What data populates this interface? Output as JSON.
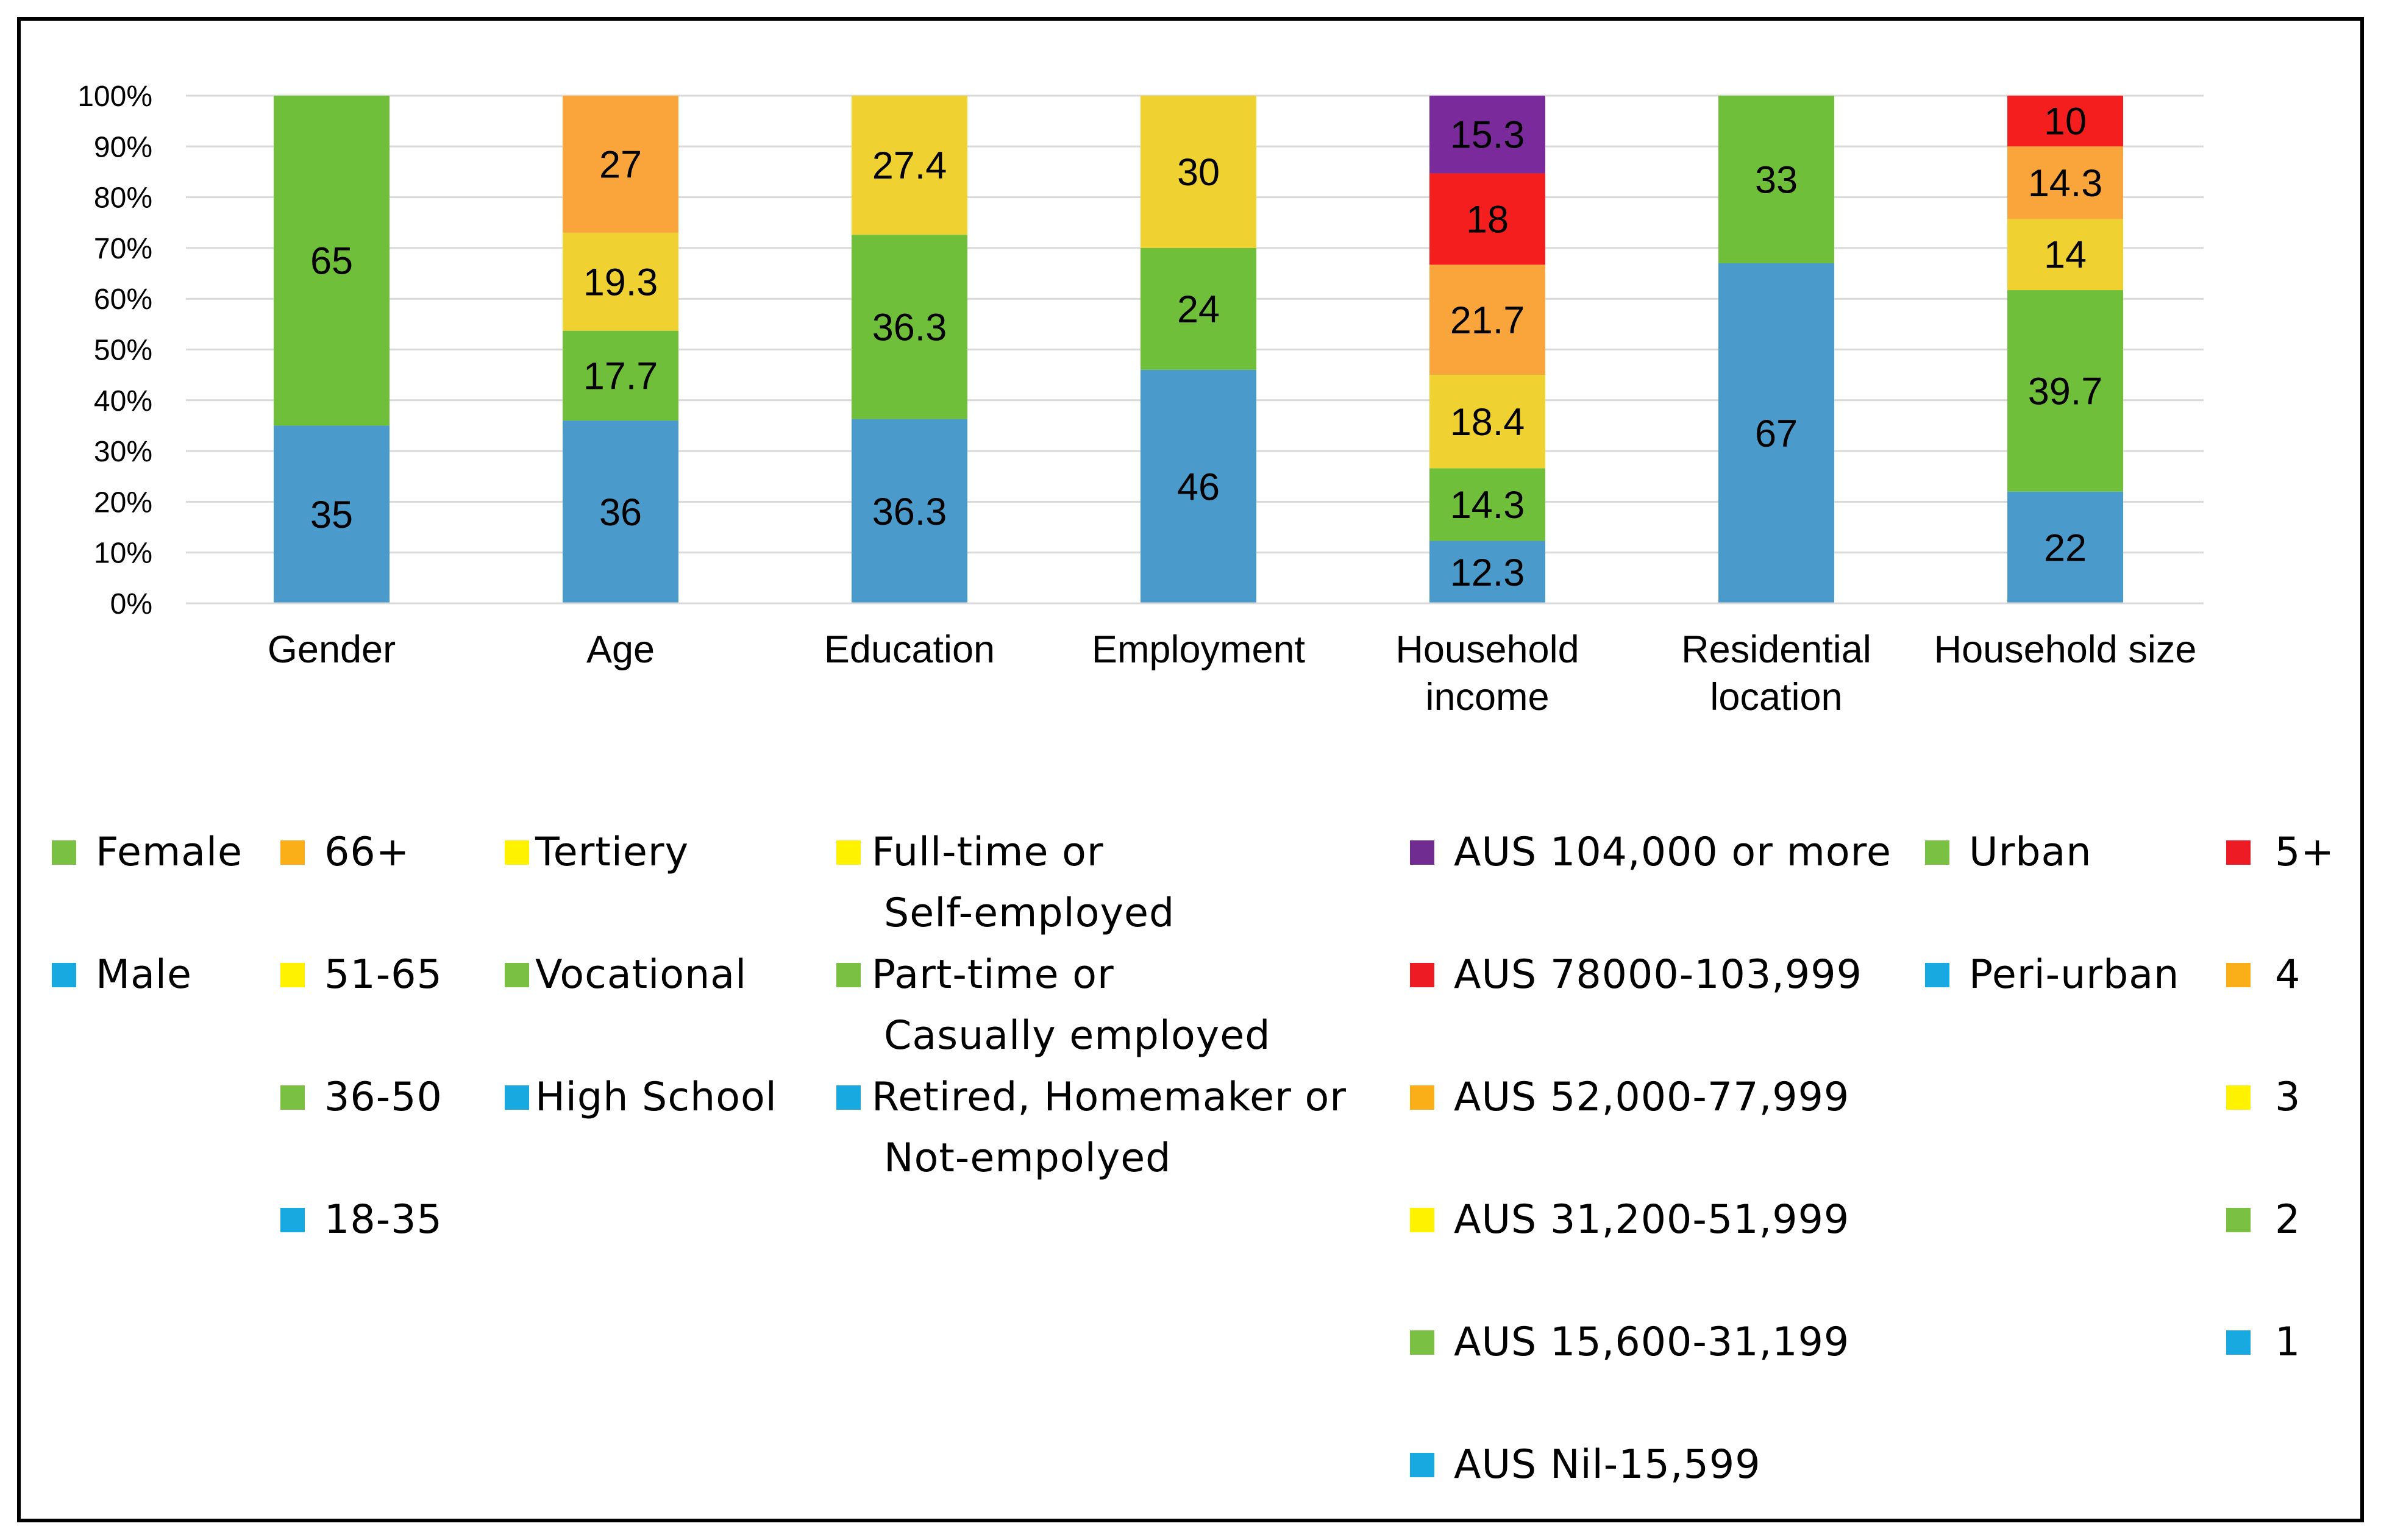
{
  "chart_data": {
    "type": "bar",
    "stacked": true,
    "percent_stacked": true,
    "categories": [
      "Gender",
      "Age",
      "Education",
      "Employment",
      "Household income",
      "Residential location",
      "Household size"
    ],
    "category_label_lines": [
      [
        "Gender"
      ],
      [
        "Age"
      ],
      [
        "Education"
      ],
      [
        "Employment"
      ],
      [
        "Household",
        "income"
      ],
      [
        "Residential",
        "location"
      ],
      [
        "Household size"
      ]
    ],
    "yaxis": {
      "ticks": [
        "0%",
        "10%",
        "20%",
        "30%",
        "40%",
        "50%",
        "60%",
        "70%",
        "80%",
        "90%",
        "100%"
      ],
      "ylim": [
        0,
        100
      ],
      "grid": true
    },
    "stacks": [
      {
        "category": "Gender",
        "segments": [
          {
            "name": "Male",
            "value": 35,
            "label": "35",
            "color": "#4A9ACB"
          },
          {
            "name": "Female",
            "value": 65,
            "label": "65",
            "color": "#70BF3A"
          }
        ]
      },
      {
        "category": "Age",
        "segments": [
          {
            "name": "18-35",
            "value": 36,
            "label": "36",
            "color": "#4A9ACB"
          },
          {
            "name": "36-50",
            "value": 17.7,
            "label": "17.7",
            "color": "#70BF3A"
          },
          {
            "name": "51-65",
            "value": 19.3,
            "label": "19.3",
            "color": "#F0D132"
          },
          {
            "name": "66+",
            "value": 27,
            "label": "27",
            "color": "#FAA53C"
          }
        ]
      },
      {
        "category": "Education",
        "segments": [
          {
            "name": "High School",
            "value": 36.3,
            "label": "36.3",
            "color": "#4A9ACB"
          },
          {
            "name": "Vocational",
            "value": 36.3,
            "label": "36.3",
            "color": "#70BF3A"
          },
          {
            "name": "Tertiery",
            "value": 27.4,
            "label": "27.4",
            "color": "#F0D132"
          }
        ]
      },
      {
        "category": "Employment",
        "segments": [
          {
            "name": "Retired, Homemaker or Not-empolyed",
            "value": 46,
            "label": "46",
            "color": "#4A9ACB"
          },
          {
            "name": "Part-time or Casually employed",
            "value": 24,
            "label": "24",
            "color": "#70BF3A"
          },
          {
            "name": "Full-time or Self-employed",
            "value": 30,
            "label": "30",
            "color": "#F0D132"
          }
        ]
      },
      {
        "category": "Household income",
        "segments": [
          {
            "name": "AUS Nil-15,599",
            "value": 12.3,
            "label": "12.3",
            "color": "#4A9ACB"
          },
          {
            "name": "AUS 15,600-31,199",
            "value": 14.3,
            "label": "14.3",
            "color": "#70BF3A"
          },
          {
            "name": "AUS 31,200-51,999",
            "value": 18.4,
            "label": "18.4",
            "color": "#F0D132"
          },
          {
            "name": "AUS 52,000-77,999",
            "value": 21.7,
            "label": "21.7",
            "color": "#FAA53C"
          },
          {
            "name": "AUS 78000-103,999",
            "value": 18,
            "label": "18",
            "color": "#F51E1E"
          },
          {
            "name": "AUS 104,000 or more",
            "value": 15.3,
            "label": "15.3",
            "color": "#7A2A9A"
          }
        ]
      },
      {
        "category": "Residential location",
        "segments": [
          {
            "name": "Peri-urban",
            "value": 67,
            "label": "67",
            "color": "#4A9ACB"
          },
          {
            "name": "Urban",
            "value": 33,
            "label": "33",
            "color": "#70BF3A"
          }
        ]
      },
      {
        "category": "Household size",
        "segments": [
          {
            "name": "1",
            "value": 22,
            "label": "22",
            "color": "#4A9ACB"
          },
          {
            "name": "2",
            "value": 39.7,
            "label": "39.7",
            "color": "#70BF3A"
          },
          {
            "name": "3",
            "value": 14,
            "label": "14",
            "color": "#F0D132"
          },
          {
            "name": "4",
            "value": 14.3,
            "label": "14.3",
            "color": "#FAA53C"
          },
          {
            "name": "5+",
            "value": 10,
            "label": "10",
            "color": "#F51E1E"
          }
        ]
      }
    ],
    "legend": {
      "placement": "bottom",
      "columns": [
        {
          "id": "gender",
          "items": [
            {
              "text": "Female",
              "color": "#7AC143"
            },
            {
              "text": "Male",
              "color": "#19A9E1"
            }
          ]
        },
        {
          "id": "age",
          "items": [
            {
              "text": "66+",
              "color": "#FAAF18"
            },
            {
              "text": "51-65",
              "color": "#FFF200"
            },
            {
              "text": "36-50",
              "color": "#7AC143"
            },
            {
              "text": "18-35",
              "color": "#19A9E1"
            }
          ]
        },
        {
          "id": "education",
          "items": [
            {
              "text": "Tertiery",
              "color": "#FFF200"
            },
            {
              "text": "Vocational",
              "color": "#7AC143"
            },
            {
              "text": "High School",
              "color": "#19A9E1"
            }
          ]
        },
        {
          "id": "employment",
          "items": [
            {
              "text": "Full-time or",
              "text2": "Self-employed",
              "color": "#FFF200"
            },
            {
              "text": "Part-time or",
              "text2": "Casually employed",
              "color": "#7AC143"
            },
            {
              "text": "Retired, Homemaker or",
              "text2": "Not-empolyed",
              "color": "#19A9E1"
            }
          ]
        },
        {
          "id": "income",
          "items": [
            {
              "text": "AUS 104,000 or more",
              "color": "#702C91"
            },
            {
              "text": "AUS 78000-103,999",
              "color": "#ED1C24"
            },
            {
              "text": "AUS 52,000-77,999",
              "color": "#FAAF18"
            },
            {
              "text": "AUS 31,200-51,999",
              "color": "#FFF200"
            },
            {
              "text": "AUS 15,600-31,199",
              "color": "#7AC143"
            },
            {
              "text": "AUS Nil-15,599",
              "color": "#19A9E1"
            }
          ]
        },
        {
          "id": "residential",
          "items": [
            {
              "text": "Urban",
              "color": "#7AC143"
            },
            {
              "text": "Peri-urban",
              "color": "#19A9E1"
            }
          ]
        },
        {
          "id": "household-size",
          "items": [
            {
              "text": "5+",
              "color": "#ED1C24"
            },
            {
              "text": "4",
              "color": "#FAAF18"
            },
            {
              "text": "3",
              "color": "#FFF200"
            },
            {
              "text": "2",
              "color": "#7AC143"
            },
            {
              "text": "1",
              "color": "#19A9E1"
            }
          ]
        }
      ]
    }
  }
}
